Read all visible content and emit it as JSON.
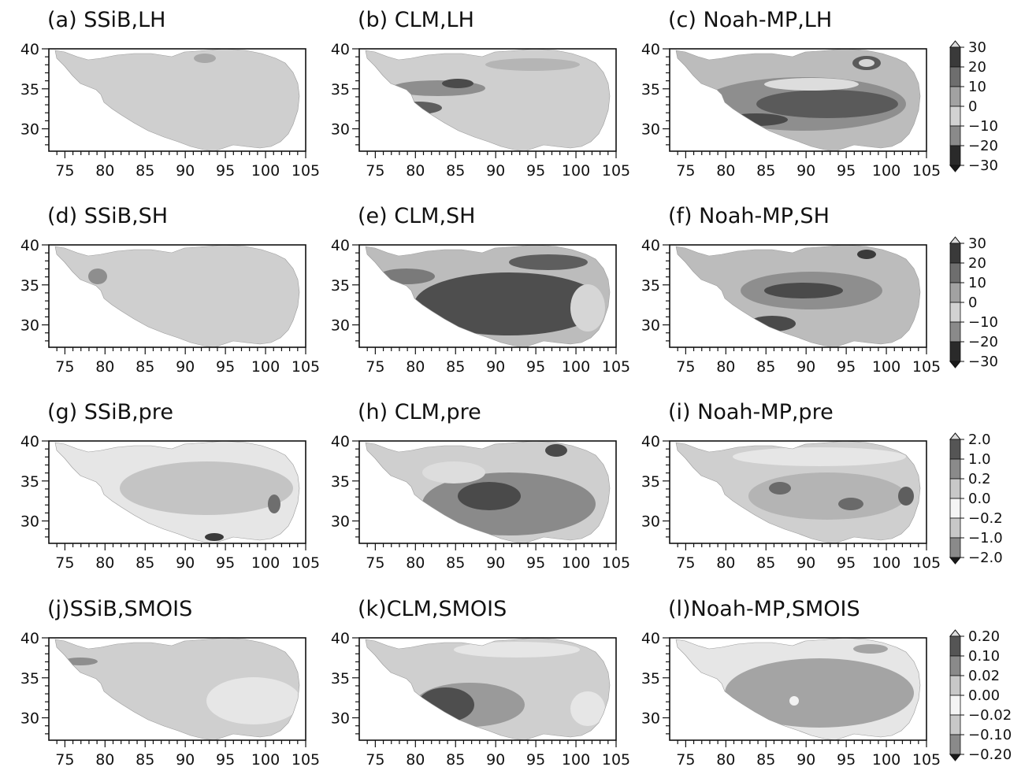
{
  "figure": {
    "x_ticks": [
      "75",
      "80",
      "85",
      "90",
      "95",
      "100",
      "105"
    ],
    "y_ticks": [
      "40",
      "35",
      "30"
    ],
    "rows": [
      {
        "panels": [
          {
            "title": "(a) SSiB,LH"
          },
          {
            "title": "(b) CLM,LH"
          },
          {
            "title": "(c) Noah-MP,LH"
          }
        ],
        "colorbar": {
          "labels": [
            "30",
            "20",
            "10",
            "0",
            "−10",
            "−20",
            "−30"
          ]
        }
      },
      {
        "panels": [
          {
            "title": "(d) SSiB,SH"
          },
          {
            "title": "(e) CLM,SH"
          },
          {
            "title": "(f) Noah-MP,SH"
          }
        ],
        "colorbar": {
          "labels": [
            "30",
            "20",
            "10",
            "0",
            "−10",
            "−20",
            "−30"
          ]
        }
      },
      {
        "panels": [
          {
            "title": "(g) SSiB,pre"
          },
          {
            "title": "(h) CLM,pre"
          },
          {
            "title": "(i) Noah-MP,pre"
          }
        ],
        "colorbar": {
          "labels": [
            "2.0",
            "1.0",
            "0.2",
            "0.0",
            "−0.2",
            "−1.0",
            "−2.0"
          ]
        }
      },
      {
        "panels": [
          {
            "title": "(j)SSiB,SMOIS"
          },
          {
            "title": "(k)CLM,SMOIS"
          },
          {
            "title": "(l)Noah-MP,SMOIS"
          }
        ],
        "colorbar": {
          "labels": [
            "0.20",
            "0.10",
            "0.02",
            "0.00",
            "−0.02",
            "−0.10",
            "−0.20"
          ]
        }
      }
    ]
  }
}
